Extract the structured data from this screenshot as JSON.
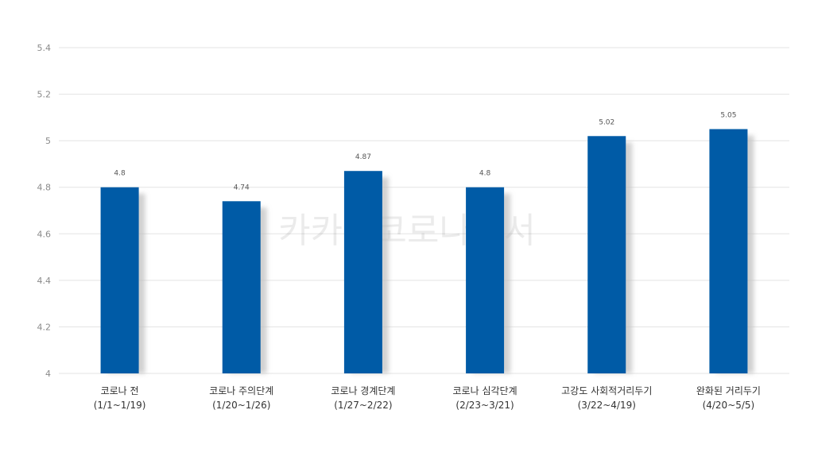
{
  "watermark": "카카오코로나백서",
  "chart_data": {
    "type": "bar",
    "categories": [
      {
        "name": "코로나 전",
        "range": "(1/1~1/19)"
      },
      {
        "name": "코로나 주의단계",
        "range": "(1/20~1/26)"
      },
      {
        "name": "코로나 경계단계",
        "range": "(1/27~2/22)"
      },
      {
        "name": "코로나 심각단계",
        "range": "(2/23~3/21)"
      },
      {
        "name": "고강도 사회적거리두기",
        "range": "(3/22~4/19)"
      },
      {
        "name": "완화된 거리두기",
        "range": "(4/20~5/5)"
      }
    ],
    "values": [
      4.8,
      4.74,
      4.87,
      4.8,
      5.02,
      5.05
    ],
    "data_labels": [
      "4.8",
      "4.74",
      "4.87",
      "4.8",
      "5.02",
      "5.05"
    ],
    "yticks": [
      "4",
      "4.2",
      "4.4",
      "4.6",
      "4.8",
      "5",
      "5.2",
      "5.4"
    ],
    "ylim": [
      4,
      5.4
    ],
    "grid": true,
    "legend": "none",
    "colors": {
      "bar": "#005ba6",
      "grid": "#e3e3e3",
      "shadow": "#bdbdbd"
    }
  }
}
